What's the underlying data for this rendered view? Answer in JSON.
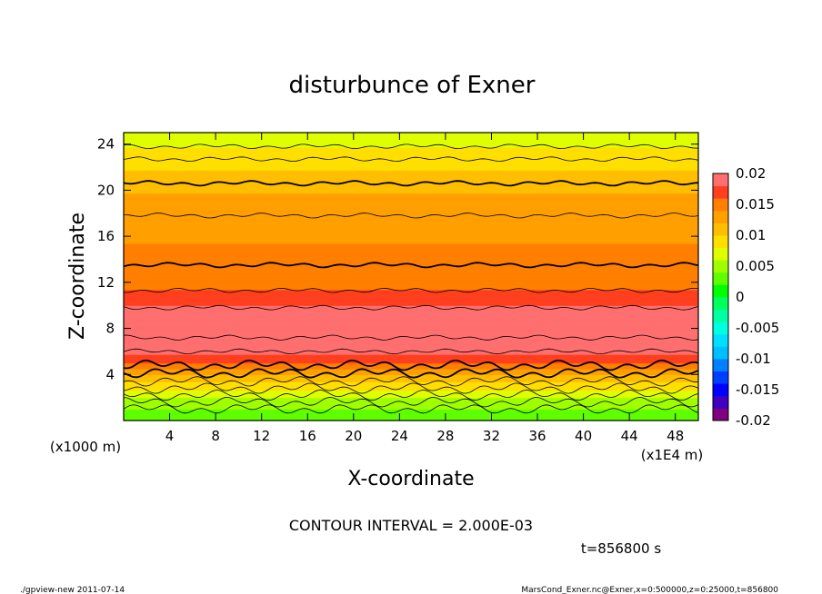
{
  "chart_data": {
    "type": "heatmap",
    "title": "disturbunce of Exner",
    "xlabel": "X-coordinate",
    "ylabel": "Z-coordinate",
    "x_unit_label": "(x1E4 m)",
    "z_unit_label": "(x1000 m)",
    "xlim": [
      0,
      50
    ],
    "ylim": [
      0,
      25
    ],
    "x_ticks": [
      4,
      8,
      12,
      16,
      20,
      24,
      28,
      32,
      36,
      40,
      44,
      48
    ],
    "y_ticks": [
      4,
      8,
      12,
      16,
      20,
      24
    ],
    "contour_interval_text": "CONTOUR INTERVAL = 2.000E-03",
    "time_text": "t=856800 s",
    "colorbar": {
      "levels": [
        -0.02,
        -0.018,
        -0.016,
        -0.014,
        -0.012,
        -0.01,
        -0.008,
        -0.006,
        -0.004,
        -0.002,
        0,
        0.002,
        0.004,
        0.006,
        0.008,
        0.01,
        0.012,
        0.014,
        0.016,
        0.018,
        0.02
      ],
      "colors": [
        "#7f007f",
        "#3f00bf",
        "#0000ff",
        "#003fff",
        "#007fff",
        "#00bfff",
        "#00dfff",
        "#00ffdf",
        "#00ffa0",
        "#00ff5f",
        "#00ff00",
        "#5fff00",
        "#9fff00",
        "#dfff00",
        "#ffdf00",
        "#ffbf00",
        "#ff9f00",
        "#ff7f00",
        "#ff3f1f",
        "#ff6f6f"
      ],
      "tick_labels": [
        "0.02",
        "0.015",
        "0.01",
        "0.005",
        "0",
        "-0.005",
        "-0.01",
        "-0.015",
        "-0.02"
      ]
    },
    "profile": {
      "z": [
        0,
        1,
        2,
        3,
        4,
        5,
        6,
        7,
        8,
        9,
        10,
        11,
        12,
        13,
        14,
        15,
        16,
        17,
        18,
        19,
        20,
        21,
        22,
        23,
        24,
        25
      ],
      "value": [
        0.002,
        0.004,
        0.006,
        0.009,
        0.012,
        0.016,
        0.0185,
        0.0195,
        0.02,
        0.0192,
        0.018,
        0.0165,
        0.015,
        0.0148,
        0.0145,
        0.0141,
        0.0138,
        0.0134,
        0.013,
        0.0125,
        0.0118,
        0.0108,
        0.0098,
        0.0088,
        0.0078,
        0.007
      ],
      "note_lines": [
        "contour lines at 2.000E-03 interval"
      ]
    },
    "contour_lines": [
      {
        "z": 1.0,
        "bold": false
      },
      {
        "z": 1.6,
        "bold": false
      },
      {
        "z": 2.2,
        "bold": false
      },
      {
        "z": 2.8,
        "bold": false
      },
      {
        "z": 3.4,
        "bold": false
      },
      {
        "z": 4.1,
        "bold": true
      },
      {
        "z": 4.8,
        "bold": true
      },
      {
        "z": 6.0,
        "bold": false
      },
      {
        "z": 7.2,
        "bold": false
      },
      {
        "z": 9.8,
        "bold": false
      },
      {
        "z": 11.3,
        "bold": false
      },
      {
        "z": 13.5,
        "bold": true
      },
      {
        "z": 17.8,
        "bold": false
      },
      {
        "z": 20.6,
        "bold": true
      },
      {
        "z": 22.7,
        "bold": false
      },
      {
        "z": 23.8,
        "bold": false
      }
    ]
  },
  "footer": {
    "left": "./gpview-new   2011-07-14",
    "right": "MarsCond_Exner.nc@Exner,x=0:500000,z=0:25000,t=856800"
  }
}
